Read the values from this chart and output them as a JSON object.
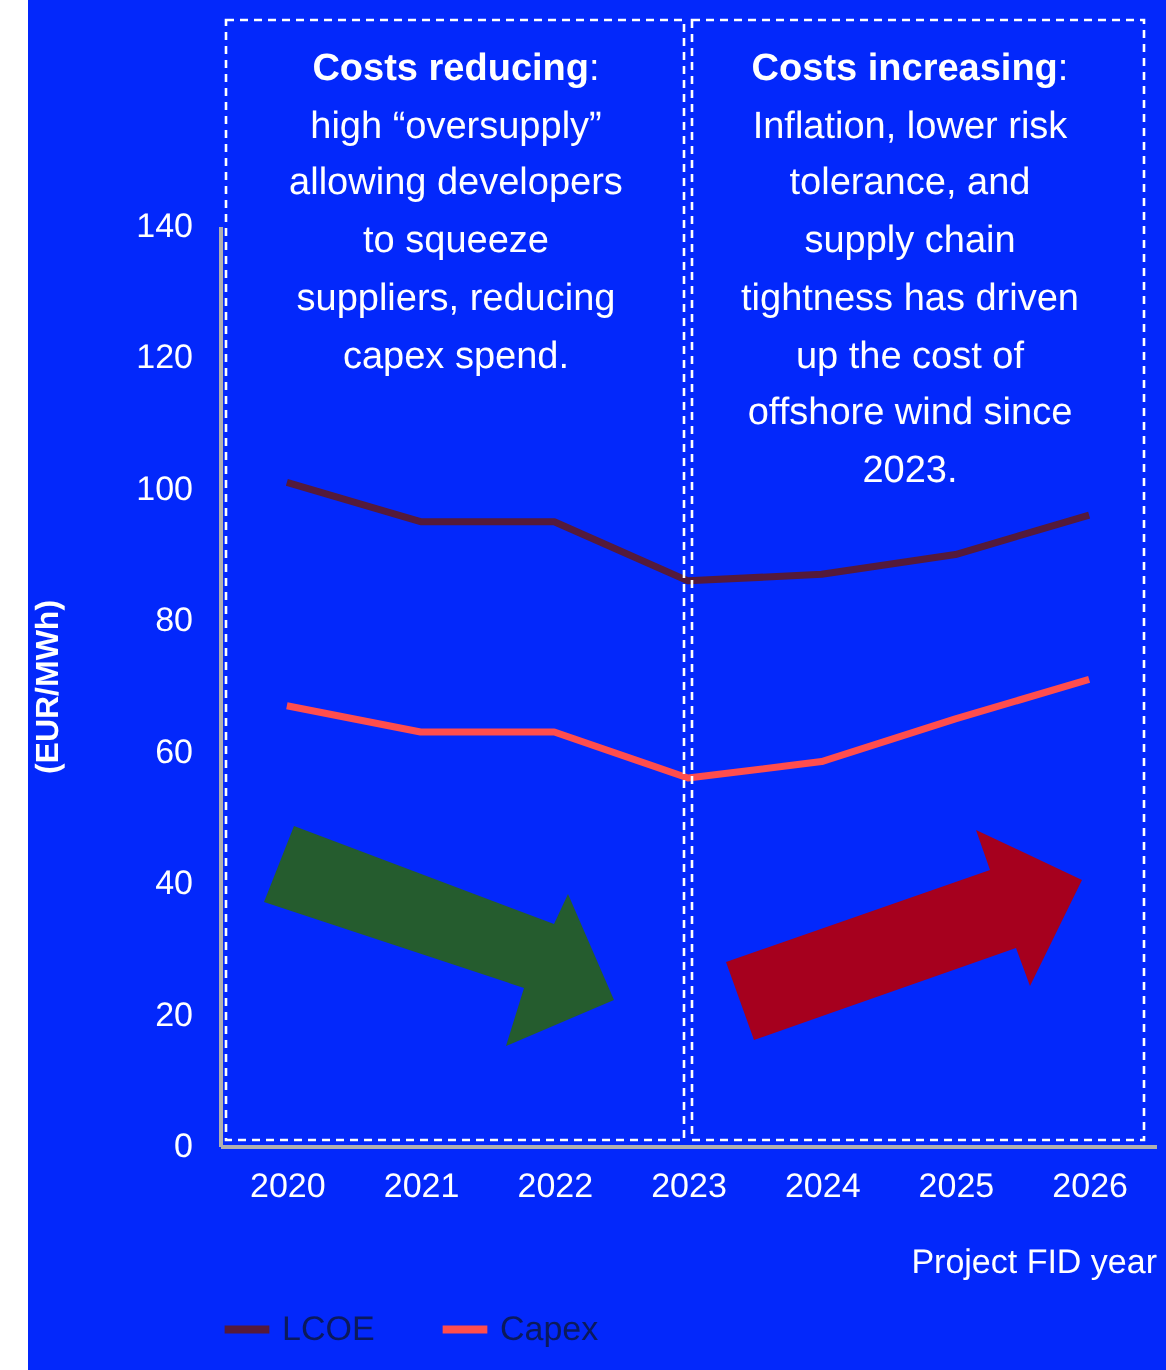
{
  "chart_data": {
    "type": "line",
    "categories": [
      "2020",
      "2021",
      "2022",
      "2023",
      "2024",
      "2025",
      "2026"
    ],
    "series": [
      {
        "name": "LCOE",
        "color": "#541a3b",
        "values": [
          101,
          95,
          95,
          86,
          87,
          90,
          96
        ]
      },
      {
        "name": "Capex",
        "color": "#ff4d4d",
        "values": [
          67,
          63,
          63,
          56,
          58.5,
          65,
          71
        ]
      }
    ],
    "xlabel": "Project FID year",
    "ylabel": "(EUR/MWh)",
    "ylim": [
      0,
      140
    ],
    "yticks": [
      0,
      20,
      40,
      60,
      80,
      100,
      120,
      140
    ],
    "grid": false,
    "legend": "bottom",
    "marker": "none",
    "line_style": "solid",
    "annotations": [
      "Costs reducing: high “oversupply” allowing developers to squeeze suppliers, reducing capex spend.",
      "Costs increasing: Inflation, lower risk tolerance, and supply chain tightness has driven up the cost of offshore wind since 2023."
    ]
  }
}
